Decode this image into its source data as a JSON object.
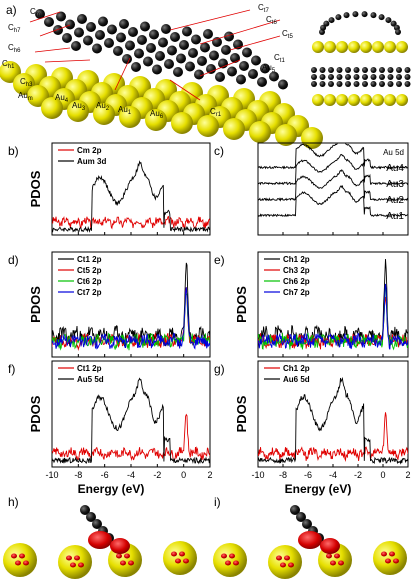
{
  "figure": {
    "panel_a": {
      "label": "a)",
      "atom_labels": [
        "Cₘ",
        "Cₘ₇",
        "Cₘ₆",
        "Cₘ₁",
        "Cₘ₃",
        "Auₘ",
        "Au₄",
        "Au₃",
        "Au₂",
        "Au₁",
        "Au₆",
        "Cₘ₁",
        "Cₜ₇",
        "Cₜ₆",
        "Cₜ₅",
        "Cₜ₁",
        "Au₅"
      ],
      "atom_labels_display": [
        "Cm",
        "Ch7",
        "Ch6",
        "Ch1",
        "Ch3",
        "Aum",
        "Au4",
        "Au3",
        "Au2",
        "Au1",
        "Au6",
        "Cr1",
        "Ct7",
        "Ct6",
        "Ct5",
        "Ct1",
        "Au5"
      ]
    },
    "y_label": "PDOS",
    "x_label": "Energy (eV)",
    "x_ticks": [
      "-10",
      "-8",
      "-6",
      "-4",
      "-2",
      "0",
      "2"
    ],
    "panel_labels": [
      "b)",
      "c)",
      "d)",
      "e)",
      "f)",
      "g)",
      "h)",
      "i)"
    ],
    "colors": {
      "black": "#000000",
      "red": "#e00000",
      "green": "#00c000",
      "blue": "#0000dd",
      "gold": "#e8e000",
      "carbon": "#1a1a1a"
    }
  },
  "chart_data": [
    {
      "panel": "b)",
      "type": "line",
      "xlim": [
        -10,
        2
      ],
      "ylabel": "PDOS",
      "series": [
        {
          "name": "Cm 2p",
          "color": "#e00000"
        },
        {
          "name": "Aum 3d",
          "color": "#000000"
        }
      ]
    },
    {
      "panel": "c)",
      "type": "line",
      "xlim": [
        -10,
        2
      ],
      "legend_title": "Au 5d",
      "series": [
        {
          "name": "Au4",
          "color": "#000000"
        },
        {
          "name": "Au3",
          "color": "#000000"
        },
        {
          "name": "Au2",
          "color": "#000000"
        },
        {
          "name": "Au1",
          "color": "#000000"
        }
      ]
    },
    {
      "panel": "d)",
      "type": "line",
      "xlim": [
        -10,
        2
      ],
      "ylabel": "PDOS",
      "series": [
        {
          "name": "Ct1 2p",
          "color": "#000000"
        },
        {
          "name": "Ct5 2p",
          "color": "#e00000"
        },
        {
          "name": "Ct6 2p",
          "color": "#00c000"
        },
        {
          "name": "Ct7 2p",
          "color": "#0000dd"
        }
      ]
    },
    {
      "panel": "e)",
      "type": "line",
      "xlim": [
        -10,
        2
      ],
      "ylabel": "PDOS",
      "series": [
        {
          "name": "Ch1 2p",
          "color": "#000000"
        },
        {
          "name": "Ch3 2p",
          "color": "#e00000"
        },
        {
          "name": "Ch6 2p",
          "color": "#00c000"
        },
        {
          "name": "Ch7 2p",
          "color": "#0000dd"
        }
      ]
    },
    {
      "panel": "f)",
      "type": "line",
      "xlim": [
        -10,
        2
      ],
      "ylabel": "PDOS",
      "x_ticks": [
        "-10",
        "-8",
        "-6",
        "-4",
        "-2",
        "0",
        "2"
      ],
      "xlabel": "Energy (eV)",
      "series": [
        {
          "name": "Ct1 2p",
          "color": "#e00000"
        },
        {
          "name": "Au5 5d",
          "color": "#000000"
        }
      ]
    },
    {
      "panel": "g)",
      "type": "line",
      "xlim": [
        -10,
        2
      ],
      "ylabel": "PDOS",
      "x_ticks": [
        "-10",
        "-8",
        "-6",
        "-4",
        "-2",
        "0",
        "2"
      ],
      "xlabel": "Energy (eV)",
      "series": [
        {
          "name": "Ch1 2p",
          "color": "#e00000"
        },
        {
          "name": "Au6 5d",
          "color": "#000000"
        }
      ]
    }
  ]
}
